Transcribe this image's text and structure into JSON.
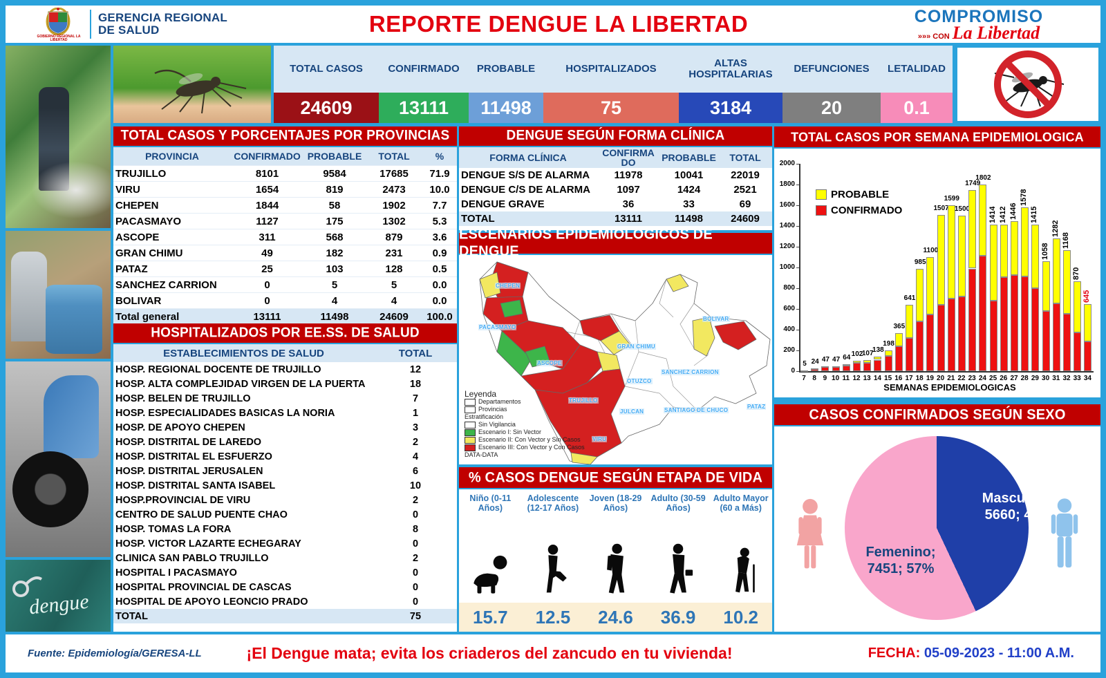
{
  "header": {
    "org_line1": "GERENCIA REGIONAL",
    "org_line2": "DE SALUD",
    "crest_caption": "GOBIERNO REGIONAL LA LIBERTAD",
    "title": "REPORTE DENGUE LA LIBERTAD",
    "brand": {
      "compromiso": "COMPROMISO",
      "con": "»»» CON",
      "libertad": "La Libertad"
    }
  },
  "stats": [
    {
      "label": "TOTAL CASOS",
      "value": "24609",
      "color": "#9B1116"
    },
    {
      "label": "CONFIRMADO",
      "value": "13111",
      "color": "#2EAD5B"
    },
    {
      "label": "PROBABLE",
      "value": "11498",
      "color": "#6D9FD8"
    },
    {
      "label": "HOSPITALIZADOS",
      "value": "75",
      "color": "#DF6B5C"
    },
    {
      "label": "ALTAS HOSPITALARIAS",
      "value": "3184",
      "color": "#2749B8"
    },
    {
      "label": "DEFUNCIONES",
      "value": "20",
      "color": "#7F7F7F"
    },
    {
      "label": "LETALIDAD",
      "value": "0.1",
      "color": "#F78CB9"
    }
  ],
  "provinces": {
    "title": "TOTAL CASOS Y PORCENTAJES POR PROVINCIAS",
    "headers": [
      "PROVINCIA",
      "CONFIRMADO",
      "PROBABLE",
      "TOTAL",
      "%"
    ],
    "rows": [
      [
        "TRUJILLO",
        "8101",
        "9584",
        "17685",
        "71.9"
      ],
      [
        "VIRU",
        "1654",
        "819",
        "2473",
        "10.0"
      ],
      [
        "CHEPEN",
        "1844",
        "58",
        "1902",
        "7.7"
      ],
      [
        "PACASMAYO",
        "1127",
        "175",
        "1302",
        "5.3"
      ],
      [
        "ASCOPE",
        "311",
        "568",
        "879",
        "3.6"
      ],
      [
        "GRAN CHIMU",
        "49",
        "182",
        "231",
        "0.9"
      ],
      [
        "PATAZ",
        "25",
        "103",
        "128",
        "0.5"
      ],
      [
        "SANCHEZ CARRION",
        "0",
        "5",
        "5",
        "0.0"
      ],
      [
        "BOLIVAR",
        "0",
        "4",
        "4",
        "0.0"
      ]
    ],
    "total_row": [
      "Total general",
      "13111",
      "11498",
      "24609",
      "100.0"
    ]
  },
  "forma_clinica": {
    "title": "DENGUE SEGÚN FORMA CLÍNICA",
    "headers": [
      "FORMA CLÍNICA",
      "CONFIRMADO",
      "PROBABLE",
      "TOTAL"
    ],
    "rows": [
      [
        "DENGUE S/S DE ALARMA",
        "11978",
        "10041",
        "22019"
      ],
      [
        "DENGUE C/S DE ALARMA",
        "1097",
        "1424",
        "2521"
      ],
      [
        "DENGUE GRAVE",
        "36",
        "33",
        "69"
      ]
    ],
    "total_row": [
      "TOTAL",
      "13111",
      "11498",
      "24609"
    ]
  },
  "hospitalizados": {
    "title": "HOSPITALIZADOS POR EE.SS. DE SALUD",
    "headers": [
      "ESTABLECIMIENTOS DE SALUD",
      "TOTAL"
    ],
    "rows": [
      [
        "HOSP. REGIONAL DOCENTE DE TRUJILLO",
        "12"
      ],
      [
        "HOSP. ALTA COMPLEJIDAD VIRGEN DE LA PUERTA",
        "18"
      ],
      [
        "HOSP. BELEN DE TRUJILLO",
        "7"
      ],
      [
        "HOSP. ESPECIALIDADES BASICAS LA NORIA",
        "1"
      ],
      [
        "HOSP. DE APOYO CHEPEN",
        "3"
      ],
      [
        "HOSP. DISTRITAL DE LAREDO",
        "2"
      ],
      [
        "HOSP. DISTRITAL EL ESFUERZO",
        "4"
      ],
      [
        "HOSP. DISTRITAL JERUSALEN",
        "6"
      ],
      [
        "HOSP. DISTRITAL SANTA ISABEL",
        "10"
      ],
      [
        "HOSP.PROVINCIAL DE VIRU",
        "2"
      ],
      [
        "CENTRO DE SALUD PUENTE CHAO",
        "0"
      ],
      [
        "HOSP. TOMAS LA FORA",
        "8"
      ],
      [
        "HOSP. VICTOR LAZARTE ECHEGARAY",
        "0"
      ],
      [
        "CLINICA SAN PABLO TRUJILLO",
        "2"
      ],
      [
        "HOSPITAL I PACASMAYO",
        "0"
      ],
      [
        "HOSPITAL PROVINCIAL DE CASCAS",
        "0"
      ],
      [
        "HOSPITAL DE APOYO LEONCIO PRADO",
        "0"
      ]
    ],
    "total_row": [
      "TOTAL",
      "75"
    ]
  },
  "map": {
    "title": "ESCENARIOS EPIDEMIOLOGICOS DE DENGUE",
    "provinces": [
      "CHEPEN",
      "PACASMAYO",
      "ASCOPE",
      "GRAN CHIMU",
      "OTUZCO",
      "TRUJILLO",
      "JULCAN",
      "SANCHEZ CARRION",
      "SANTIAGO DE CHUCO",
      "VIRU",
      "BOLIVAR",
      "PATAZ"
    ],
    "legend": {
      "title": "Leyenda",
      "boundary_items": [
        "Departamentos",
        "Provincias"
      ],
      "strat_title": "Estratificación",
      "strat_items": [
        {
          "label": "Sin Vigilancia",
          "color": "#FFFFFF"
        },
        {
          "label": "Escenario I: Sin Vector",
          "color": "#3DB54A"
        },
        {
          "label": "Escenario II: Con Vector y Sin Casos",
          "color": "#F2E860"
        },
        {
          "label": "Escenario III: Con Vector y Con Casos",
          "color": "#D42020"
        }
      ],
      "footnote": "DATA-DATA"
    }
  },
  "chart_data": [
    {
      "type": "bar",
      "stacked": true,
      "title": "TOTAL CASOS POR SEMANA EPIDEMIOLOGICA",
      "xlabel": "SEMANAS EPIDEMIOLOGICAS",
      "ylabel": "",
      "ylim": [
        0,
        2000
      ],
      "ytick_step": 200,
      "legend": [
        "PROBABLE",
        "CONFIRMADO"
      ],
      "legend_colors": [
        "#FFFF00",
        "#EE1111"
      ],
      "categories": [
        7,
        8,
        9,
        10,
        11,
        12,
        13,
        14,
        15,
        16,
        17,
        18,
        19,
        20,
        21,
        22,
        23,
        24,
        25,
        26,
        27,
        28,
        29,
        30,
        31,
        32,
        33,
        34
      ],
      "totals": [
        5,
        24,
        47,
        47,
        64,
        102,
        107,
        138,
        198,
        365,
        641,
        985,
        1100,
        1507,
        1599,
        1500,
        1749,
        1802,
        1414,
        1412,
        1446,
        1578,
        1415,
        1058,
        1282,
        1168,
        870,
        645
      ],
      "series": [
        {
          "name": "CONFIRMADO",
          "color": "#EE1111",
          "values": [
            4,
            20,
            42,
            42,
            55,
            78,
            80,
            110,
            145,
            240,
            320,
            480,
            545,
            640,
            700,
            720,
            990,
            1115,
            680,
            905,
            925,
            915,
            800,
            580,
            655,
            555,
            375,
            285
          ]
        },
        {
          "name": "PROBABLE",
          "color": "#FFFF00",
          "values_note": "total minus confirmado"
        }
      ],
      "last_label_color": "#E3000F"
    },
    {
      "type": "pie",
      "title": "CASOS CONFIRMADOS SEGÚN SEXO",
      "slices": [
        {
          "label": "Masculino",
          "value": 5660,
          "pct": 43,
          "color": "#1F3FA8"
        },
        {
          "label": "Femenino",
          "value": 7451,
          "pct": 57,
          "color": "#F9A6CB"
        }
      ],
      "label_masculino": "Masculino; 5660; 43%",
      "label_femenino": "Femenino; 7451; 57%"
    }
  ],
  "etapa": {
    "title": "% CASOS DENGUE SEGÚN ETAPA DE VIDA",
    "groups": [
      {
        "label": "Niño (0-11 Años)",
        "value": "15.7"
      },
      {
        "label": "Adolescente (12-17 Años)",
        "value": "12.5"
      },
      {
        "label": "Joven (18-29 Años)",
        "value": "24.6"
      },
      {
        "label": "Adulto (30-59 Años)",
        "value": "36.9"
      },
      {
        "label": "Adulto Mayor (60 a Más)",
        "value": "10.2"
      }
    ]
  },
  "sexo_title": "CASOS CONFIRMADOS SEGÚN SEXO",
  "photos": {
    "chalkboard_text": "dengue"
  },
  "footer": {
    "fuente": "Fuente: Epidemiología/GERESA-LL",
    "mensaje": "¡El Dengue mata; evita los criaderos del zancudo en tu vivienda!",
    "fecha_label": "FECHA:",
    "fecha_value": "05-09-2023 - 11:00 A.M."
  }
}
